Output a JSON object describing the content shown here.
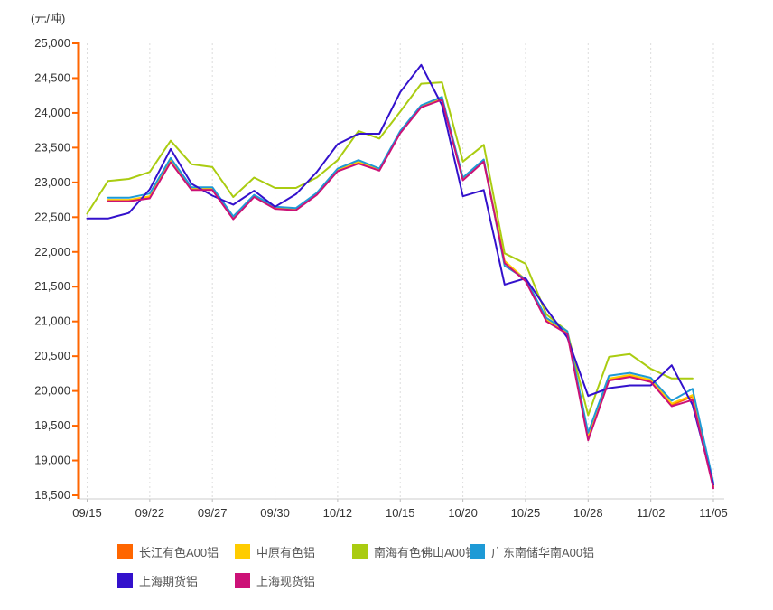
{
  "chart_data": {
    "type": "line",
    "unit_label": "(元/吨)",
    "x_tick_labels": [
      "09/15",
      "09/22",
      "09/27",
      "09/30",
      "10/12",
      "10/15",
      "10/20",
      "10/25",
      "10/28",
      "11/02",
      "11/05"
    ],
    "x_label_every": 3,
    "n_points": 31,
    "y_axis": {
      "min": 18500,
      "max": 25000,
      "step": 500,
      "tick_labels": [
        "25,000",
        "24,500",
        "24,000",
        "23,500",
        "23,000",
        "22,500",
        "22,000",
        "21,500",
        "21,000",
        "20,500",
        "20,000",
        "19,500",
        "19,000",
        "18,500"
      ]
    },
    "grid": "vertical-dashed",
    "legend_position": "bottom",
    "styles": {
      "y_axis_color": "#FF6600",
      "x_axis_line_color": "#CCCCCC",
      "gridline_color": "#DDDDDD",
      "tick_color": "#BBBBBB",
      "axis_label_color": "#333333",
      "legend_text_color": "#555555",
      "background": "#FFFFFF"
    },
    "series": [
      {
        "name": "长江有色A00铝",
        "color": "#FF6600",
        "values": [
          null,
          22730,
          22730,
          22790,
          23310,
          22900,
          22910,
          22480,
          22800,
          22630,
          22610,
          22830,
          23170,
          23290,
          23180,
          23720,
          24090,
          24200,
          23040,
          23310,
          21850,
          21590,
          21010,
          20830,
          19330,
          20170,
          20220,
          20150,
          19800,
          19920,
          18620
        ]
      },
      {
        "name": "中原有色铝",
        "color": "#FFCC00",
        "values": [
          null,
          22750,
          22750,
          22800,
          23320,
          22910,
          22920,
          22500,
          22810,
          22640,
          22620,
          22840,
          23180,
          23300,
          23190,
          23730,
          24100,
          24210,
          23060,
          23320,
          21870,
          21600,
          21030,
          20850,
          19350,
          20180,
          20230,
          20160,
          19820,
          19940,
          18640
        ]
      },
      {
        "name": "南海有色佛山A00铝",
        "color": "#AACC11",
        "values": [
          22550,
          23020,
          23050,
          23150,
          23600,
          23260,
          23220,
          22790,
          23070,
          22920,
          22920,
          23070,
          23320,
          23740,
          23630,
          24020,
          24420,
          24440,
          23300,
          23540,
          21980,
          21830,
          21100,
          20860,
          19650,
          20490,
          20530,
          20320,
          20180,
          20180,
          null
        ]
      },
      {
        "name": "广东南储华南A00铝",
        "color": "#1E9AD6",
        "values": [
          null,
          22780,
          22780,
          22840,
          23350,
          22930,
          22930,
          22510,
          22820,
          22650,
          22630,
          22850,
          23200,
          23320,
          23200,
          23740,
          24110,
          24230,
          23070,
          23330,
          21800,
          21610,
          21050,
          20860,
          19400,
          20220,
          20260,
          20190,
          19860,
          20030,
          18680
        ]
      },
      {
        "name": "上海期货铝",
        "color": "#3311CC",
        "values": [
          22480,
          22480,
          22560,
          22900,
          23480,
          22980,
          22810,
          22680,
          22880,
          22650,
          22830,
          23150,
          23550,
          23700,
          23700,
          24300,
          24690,
          24110,
          22800,
          22890,
          21530,
          21620,
          21180,
          20770,
          19930,
          20040,
          20080,
          20080,
          20370,
          19800,
          18650
        ]
      },
      {
        "name": "上海现货铝",
        "color": "#CC1177",
        "values": [
          null,
          22730,
          22730,
          22770,
          23290,
          22890,
          22890,
          22470,
          22790,
          22620,
          22600,
          22820,
          23160,
          23270,
          23170,
          23710,
          24080,
          24190,
          23030,
          23300,
          21840,
          21580,
          21000,
          20820,
          19290,
          20150,
          20200,
          20130,
          19780,
          19870,
          18600
        ]
      }
    ]
  }
}
